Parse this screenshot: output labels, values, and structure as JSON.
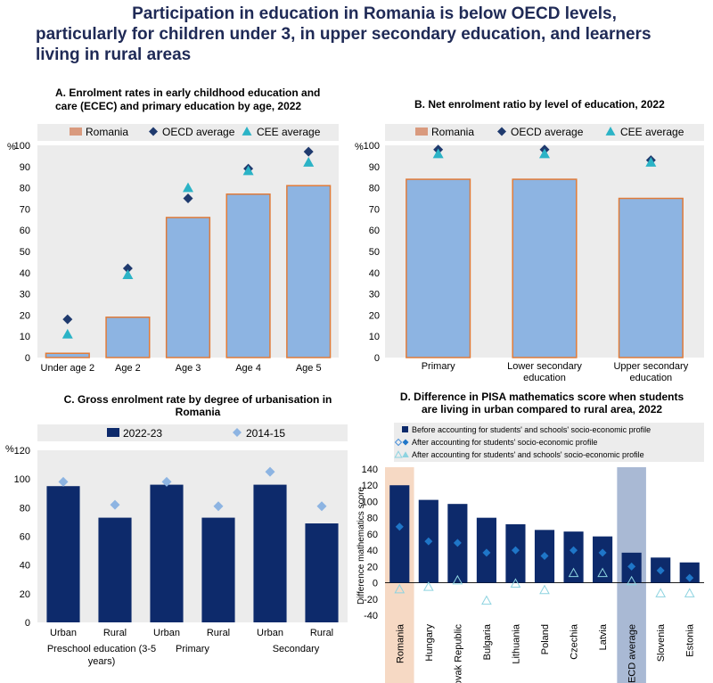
{
  "title_lines": [
    "Participation in education in Romania is below OECD levels,",
    "particularly for children under 3, in upper secondary education, and learners",
    "living in rural areas"
  ],
  "chart_data": [
    {
      "id": "A",
      "type": "bar",
      "title_lines": [
        "A. Enrolment rates in early childhood education and",
        "care (ECEC) and primary education by age, 2022"
      ],
      "ylabel": "%",
      "ylim": [
        0,
        100
      ],
      "yticks": [
        0,
        10,
        20,
        30,
        40,
        50,
        60,
        70,
        80,
        90,
        100
      ],
      "categories": [
        "Under age 2",
        "Age 2",
        "Age 3",
        "Age 4",
        "Age 5"
      ],
      "legend": [
        "Romania",
        "OECD average",
        "CEE average"
      ],
      "series": [
        {
          "name": "Romania",
          "values": [
            2,
            19,
            66,
            77,
            81
          ]
        },
        {
          "name": "OECD average",
          "values": [
            18,
            42,
            75,
            89,
            97
          ]
        },
        {
          "name": "CEE average",
          "values": [
            11,
            39,
            80,
            88,
            92
          ]
        }
      ],
      "colors": {
        "bar": "#8db4e2",
        "bar_edge": "#e07b39",
        "legend_patch": "#d99a7e",
        "oecd": "#1f3a6e",
        "cee": "#2bb3c6",
        "panel": "#ececec"
      }
    },
    {
      "id": "B",
      "type": "bar",
      "title_lines": [
        "B. Net enrolment ratio by level of education, 2022"
      ],
      "ylabel": "%",
      "ylim": [
        0,
        100
      ],
      "yticks": [
        0,
        10,
        20,
        30,
        40,
        50,
        60,
        70,
        80,
        90,
        100
      ],
      "categories": [
        [
          "Primary"
        ],
        [
          "Lower secondary",
          "education"
        ],
        [
          "Upper secondary",
          "education"
        ]
      ],
      "legend": [
        "Romania",
        "OECD average",
        "CEE average"
      ],
      "series": [
        {
          "name": "Romania",
          "values": [
            84,
            84,
            75
          ]
        },
        {
          "name": "OECD average",
          "values": [
            98,
            98,
            93
          ]
        },
        {
          "name": "CEE average",
          "values": [
            96,
            96,
            92
          ]
        }
      ]
    },
    {
      "id": "C",
      "type": "bar",
      "title_lines": [
        "C. Gross enrolment rate by degree of urbanisation in",
        "Romania"
      ],
      "ylabel": "%",
      "ylim": [
        0,
        120
      ],
      "yticks": [
        0,
        20,
        40,
        60,
        80,
        100,
        120
      ],
      "categories": [
        "Urban",
        "Rural",
        "Urban",
        "Rural",
        "Urban",
        "Rural"
      ],
      "groups": [
        [
          "Preschool education (3-5",
          "years)"
        ],
        [
          "Primary"
        ],
        [
          "Secondary"
        ]
      ],
      "legend": [
        "2022-23",
        "2014-15"
      ],
      "series": [
        {
          "name": "2022-23",
          "values": [
            95,
            73,
            96,
            73,
            96,
            69
          ]
        },
        {
          "name": "2014-15",
          "values": [
            98,
            82,
            98,
            81,
            105,
            81
          ]
        }
      ],
      "colors": {
        "bar": "#0d2a6b",
        "marker": "#8db4e2"
      }
    },
    {
      "id": "D",
      "type": "bar",
      "title_lines": [
        "D. Difference in PISA mathematics score when students",
        "are living in urban compared to rural area, 2022"
      ],
      "ylabel": "Difference mathematics score",
      "ylim": [
        -40,
        140
      ],
      "yticks": [
        -40,
        -20,
        0,
        20,
        40,
        60,
        80,
        100,
        120,
        140
      ],
      "categories": [
        "Romania",
        "Hungary",
        "Slovak Republic",
        "Bulgaria",
        "Lithuania",
        "Poland",
        "Czechia",
        "Latvia",
        "OECD average",
        "Slovenia",
        "Estonia"
      ],
      "legend": [
        "Before accounting for students' and schools' socio-economic profile",
        "After accounting for students' socio-economic profile",
        "After accounting for students' and schools' socio-economic profile"
      ],
      "series": [
        {
          "name": "Before accounting for students' and schools' socio-economic profile",
          "values": [
            120,
            102,
            97,
            80,
            72,
            65,
            63,
            57,
            37,
            31,
            25
          ]
        },
        {
          "name": "After accounting for students' socio-economic profile",
          "values": [
            69,
            51,
            49,
            37,
            40,
            33,
            40,
            37,
            20,
            15,
            6
          ]
        },
        {
          "name": "After accounting for students' and schools' socio-economic profile",
          "values": [
            -8,
            -5,
            3,
            -22,
            -1,
            -9,
            12,
            12,
            2,
            -13,
            -13
          ]
        }
      ],
      "colors": {
        "bar": "#0d2a6b",
        "highlight_romania": "#f6d9c4",
        "highlight_oecd": "#a9b9d4",
        "after1": "#1f76c8",
        "after2": "#8dd3e0"
      }
    }
  ]
}
